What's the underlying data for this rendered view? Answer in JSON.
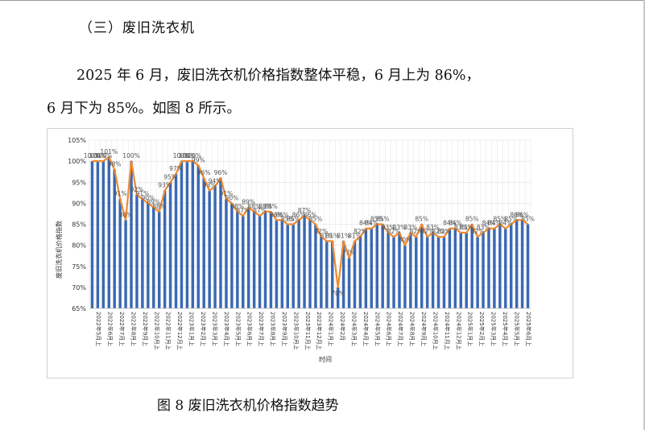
{
  "heading": "（三）废旧洗衣机",
  "paragraph": {
    "line1": "2025 年 6 月，废旧洗衣机价格指数整体平稳，6 月上为 86%，",
    "line2": "6 月下为 85%。如图 8 所示。"
  },
  "figure_caption": "图 8  废旧洗衣机价格指数趋势",
  "chart_data": {
    "type": "bar",
    "ylabel": "废旧洗衣机价格指数",
    "xlabel": "时间",
    "ylim": [
      65,
      105
    ],
    "y_ticks": [
      "65%",
      "70%",
      "75%",
      "80%",
      "85%",
      "90%",
      "95%",
      "100%",
      "105%"
    ],
    "x_ticks": [
      "2022年5月上",
      "2022年6月上",
      "2022年7月上",
      "2022年8月上",
      "2022年9月上",
      "2022年10月上",
      "2022年11月上",
      "2022年12月上",
      "2023年1月上",
      "2023年2月上",
      "2023年3月上",
      "2023年4月上",
      "2023年5月上",
      "2023年6月上",
      "2023年7月上",
      "2023年8月上",
      "2023年9月上",
      "2023年10月上",
      "2023年11月上",
      "2023年12月上",
      "2024年1月上",
      "2024年2月",
      "2024年3月上",
      "2024年4月上",
      "2024年5月上",
      "2024年6月上",
      "2024年7月上",
      "2024年8月上",
      "2024年9月上",
      "2024年10月上",
      "2024年11月上",
      "2024年12月上",
      "2025年1月上",
      "2025年2月上",
      "2025年3月上",
      "2025年4月上",
      "2025年5月上",
      "2025年6月上"
    ],
    "bar_color": "#3a69b3",
    "line_color": "#ed8a33",
    "grid": true,
    "values": [
      100,
      100,
      100,
      101,
      98,
      91,
      86,
      100,
      92,
      91,
      90,
      89,
      88,
      93,
      95,
      97,
      100,
      100,
      100,
      99,
      96,
      93,
      94,
      96,
      91,
      90,
      88,
      87,
      89,
      88,
      87,
      88,
      88,
      86,
      86,
      85,
      85,
      86,
      87,
      86,
      85,
      82,
      81,
      81,
      70,
      81,
      77,
      81,
      82,
      84,
      84,
      85,
      85,
      83,
      82,
      83,
      80,
      83,
      82,
      85,
      82,
      83,
      82,
      82,
      84,
      84,
      83,
      83,
      85,
      82,
      83,
      84,
      84,
      85,
      84,
      85,
      86,
      86,
      85
    ],
    "labels": [
      "100%",
      "100%",
      "100%",
      "101%",
      "98%",
      "91%",
      "86%",
      "100%",
      "92%",
      "91%",
      "90%",
      "89%",
      "88%",
      "93%",
      "95%",
      "97%",
      "100%",
      "100%",
      "100%",
      "99%",
      "96%",
      "93%",
      "94%",
      "96%",
      "91%",
      "90%",
      "88%",
      "87%",
      "89%",
      "88%",
      "87%",
      "88%",
      "88%",
      "86%",
      "86%",
      "85%",
      "85%",
      "86%",
      "87%",
      "86%",
      "85%",
      "82%",
      "81%",
      "81%",
      "70%",
      "81%",
      "77%",
      "81%",
      "82%",
      "84%",
      "84%",
      "85%",
      "85%",
      "83%",
      "82%",
      "83%",
      "80%",
      "83%",
      "82%",
      "85%",
      "82%",
      "83%",
      "82%",
      "82%",
      "84%",
      "84%",
      "83%",
      "83%",
      "85%",
      "82%",
      "83%",
      "84%",
      "84%",
      "85%",
      "84%",
      "85%",
      "86%",
      "86%",
      "85%"
    ]
  }
}
